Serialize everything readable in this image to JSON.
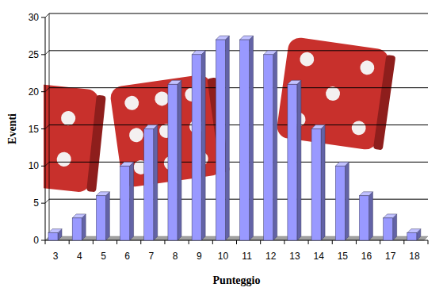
{
  "chart_data": {
    "type": "bar",
    "x_label": "Punteggio",
    "y_label": "Eventi",
    "categories": [
      "3",
      "4",
      "5",
      "6",
      "7",
      "8",
      "9",
      "10",
      "11",
      "12",
      "13",
      "14",
      "15",
      "16",
      "17",
      "18"
    ],
    "values": [
      1,
      3,
      6,
      10,
      15,
      21,
      25,
      27,
      27,
      25,
      21,
      15,
      10,
      6,
      3,
      1
    ],
    "color": "#9999ff",
    "ylim": [
      0,
      30
    ],
    "yticks": [
      0,
      5,
      10,
      15,
      20,
      25,
      30
    ],
    "grid": true
  }
}
